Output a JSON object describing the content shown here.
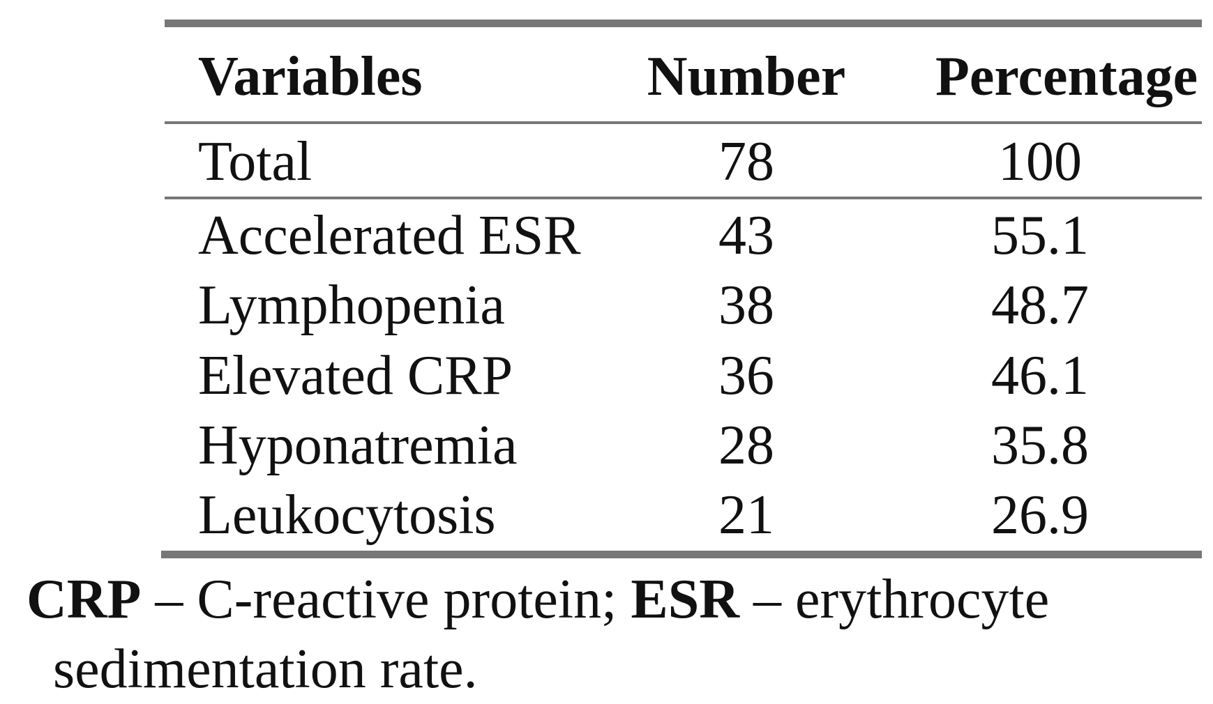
{
  "table": {
    "headers": [
      "Variables",
      "Number",
      "Percentage"
    ],
    "rows": [
      [
        "Total",
        78,
        100
      ],
      [
        "Accelerated ESR",
        43,
        55.1
      ],
      [
        "Lymphopenia",
        38,
        48.7
      ],
      [
        "Elevated CRP",
        36,
        46.1
      ],
      [
        "Hyponatremia",
        28,
        35.8
      ],
      [
        "Leukocytosis",
        21,
        26.9
      ]
    ]
  },
  "footnote": [
    "CRP",
    " – C-reactive protein; ",
    "ESR",
    " – erythrocyte sedimentation rate."
  ]
}
